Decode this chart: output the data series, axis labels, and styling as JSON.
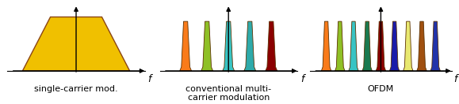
{
  "bg_color": "#ffffff",
  "title_fontsize": 8,
  "axis_label_fontsize": 9,
  "panel1": {
    "label": "single-carrier mod.",
    "trapezoid_color": "#f0c000",
    "trapezoid_edge": "#8B4513"
  },
  "panel2": {
    "label": "conventional multi-\ncarrier modulation",
    "bar_colors": [
      "#f97b1a",
      "#8fc026",
      "#38c4c4",
      "#2eaaaa",
      "#8B0000"
    ],
    "bar_positions": [
      -2.0,
      -1.0,
      0.0,
      1.0,
      2.0
    ],
    "bar_width": 0.55,
    "bar_height": 0.78
  },
  "panel3": {
    "label": "OFDM",
    "bar_colors": [
      "#f97b1a",
      "#8fc026",
      "#38c4c4",
      "#1a7a50",
      "#8B0000",
      "#1a1aaa",
      "#e8e870",
      "#a05010",
      "#2233aa"
    ],
    "bar_positions": [
      -4.0,
      -3.0,
      -2.0,
      -1.0,
      0.0,
      1.0,
      2.0,
      3.0,
      4.0
    ],
    "bar_width": 0.72,
    "bar_height": 0.78
  }
}
